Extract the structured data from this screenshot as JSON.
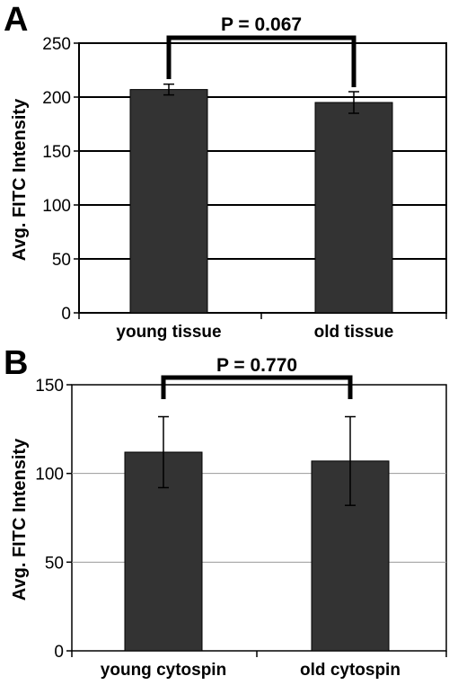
{
  "chart_data": [
    {
      "type": "bar",
      "panel": "A",
      "ylabel": "Avg. FITC Intensity",
      "ylim": [
        0,
        250
      ],
      "yticks": [
        0,
        50,
        100,
        150,
        200,
        250
      ],
      "grid": true,
      "categories": [
        "young tissue",
        "old tissue"
      ],
      "values": [
        207,
        195
      ],
      "errors": [
        5,
        10
      ],
      "bar_color": "#333333",
      "significance": {
        "label": "P = 0.067",
        "between": [
          0,
          1
        ]
      }
    },
    {
      "type": "bar",
      "panel": "B",
      "ylabel": "Avg. FITC Intensity",
      "ylim": [
        0,
        150
      ],
      "yticks": [
        0,
        50,
        100,
        150
      ],
      "grid": true,
      "categories": [
        "young cytospin",
        "old cytospin"
      ],
      "values": [
        112,
        107
      ],
      "errors": [
        20,
        25
      ],
      "bar_color": "#333333",
      "significance": {
        "label": "P = 0.770",
        "between": [
          0,
          1
        ]
      }
    }
  ]
}
